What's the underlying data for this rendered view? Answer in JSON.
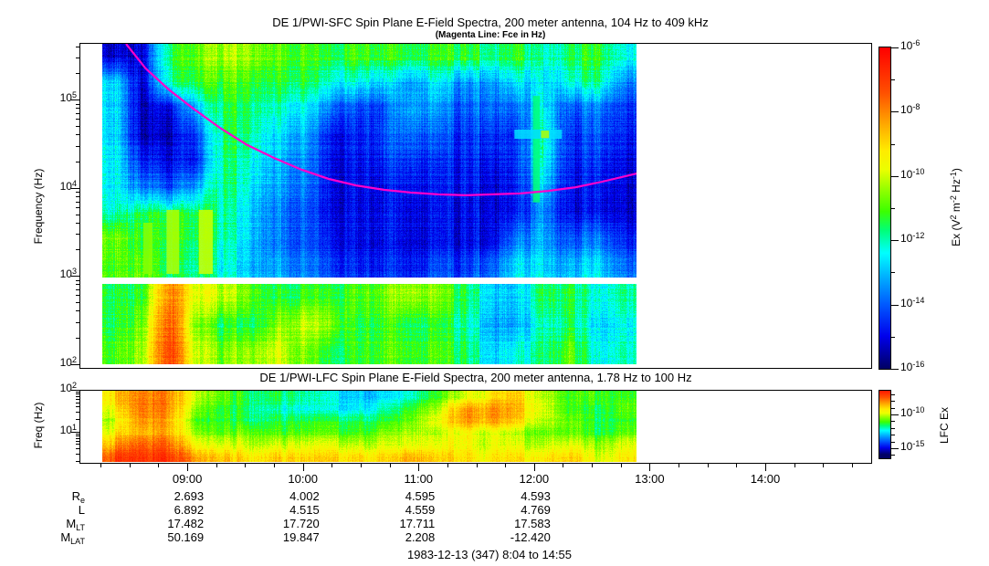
{
  "sfc": {
    "title": "DE 1/PWI-SFC  Spin Plane E-Field Spectra, 200 meter antenna, 104 Hz to 409 kHz",
    "subtitle": "(Magenta Line: Fce in Hz)",
    "y_axis_label": "Frequency (Hz)",
    "y_ticks": [
      {
        "label": "10",
        "exp": "5",
        "value": 100000
      },
      {
        "label": "10",
        "exp": "4",
        "value": 10000
      },
      {
        "label": "10",
        "exp": "3",
        "value": 1000
      },
      {
        "label": "10",
        "exp": "2",
        "value": 100
      }
    ],
    "colorbar": {
      "label_parts": [
        [
          "Ex (V",
          ""
        ],
        [
          "2",
          "sup"
        ],
        [
          " m",
          ""
        ],
        [
          "-2",
          "sup"
        ],
        [
          " Hz",
          ""
        ],
        [
          "-1",
          "sup"
        ],
        [
          ")",
          ""
        ]
      ],
      "ticks": [
        {
          "label": "10",
          "exp": "-6",
          "value": -6
        },
        {
          "label": "10",
          "exp": "-8",
          "value": -8
        },
        {
          "label": "10",
          "exp": "-10",
          "value": -10
        },
        {
          "label": "10",
          "exp": "-12",
          "value": -12
        },
        {
          "label": "10",
          "exp": "-14",
          "value": -14
        },
        {
          "label": "10",
          "exp": "-16",
          "value": -16
        }
      ]
    }
  },
  "lfc": {
    "title": "DE 1/PWI-LFC  Spin Plane E-Field Spectra, 200 meter antenna, 1.78 Hz to 100 Hz",
    "y_axis_label": "Freq (Hz)",
    "y_ticks": [
      {
        "label": "10",
        "exp": "2",
        "value": 100
      },
      {
        "label": "10",
        "exp": "1",
        "value": 10
      }
    ],
    "colorbar": {
      "label": "LFC Ex",
      "ticks": [
        {
          "label": "10",
          "exp": "-10",
          "value": -10
        },
        {
          "label": "10",
          "exp": "-15",
          "value": -15
        }
      ]
    }
  },
  "time_axis": {
    "start_label": "8:04",
    "end_label": "14:55",
    "tick_labels": [
      {
        "text": "09:00",
        "hour": 9
      },
      {
        "text": "10:00",
        "hour": 10
      },
      {
        "text": "11:00",
        "hour": 11
      },
      {
        "text": "12:00",
        "hour": 12
      },
      {
        "text": "13:00",
        "hour": 13
      },
      {
        "text": "14:00",
        "hour": 14
      }
    ]
  },
  "footer": {
    "rows": [
      {
        "label_parts": [
          [
            "R",
            ""
          ],
          [
            "e",
            "sub"
          ]
        ],
        "values": [
          "2.693",
          "4.002",
          "4.595",
          "4.593"
        ]
      },
      {
        "label_parts": [
          [
            "L",
            ""
          ]
        ],
        "values": [
          "6.892",
          "4.515",
          "4.559",
          "4.769"
        ]
      },
      {
        "label_parts": [
          [
            "M",
            ""
          ],
          [
            "LT",
            "sub"
          ]
        ],
        "values": [
          "17.482",
          "17.720",
          "17.711",
          "17.583"
        ]
      },
      {
        "label_parts": [
          [
            "M",
            ""
          ],
          [
            "LAT",
            "sub"
          ]
        ],
        "values": [
          "50.169",
          "19.847",
          "2.208",
          "-12.420"
        ]
      }
    ],
    "value_anchor_hours": [
      9,
      10,
      11,
      12
    ],
    "date_line": "1983-12-13 (347) 8:04 to 14:55"
  },
  "chart_data": {
    "type": "heatmap",
    "title": "DE 1/PWI-SFC and DE 1/PWI-LFC spin plane E-field spectrograms",
    "time_axis_hours": {
      "start": 8.0667,
      "end": 14.9167,
      "data_start": 8.27,
      "data_end": 12.886
    },
    "panels": [
      {
        "id": "sfc",
        "freq_range_hz": [
          104,
          409000
        ],
        "value_range_log10": [
          -16,
          -6
        ],
        "white_gap_freq_hz": [
          950,
          1200
        ],
        "grid_note": "rows log-spaced top 409 kHz to bottom 104 Hz; cols linear 8:16 to 12:53 UT; values log10(V2 m-2 Hz-1)",
        "grid_log10": [
          [
            -15.3,
            -15,
            -11.5,
            -10.8,
            -10.2,
            -10.2,
            -10.8,
            -11.2,
            -11.3,
            -11,
            -11.2,
            -11.3,
            -11.2,
            -11.4,
            -11.6,
            -11.3,
            -12.2,
            -11.6,
            -11.4,
            -12.3
          ],
          [
            -12.8,
            -15.2,
            -12,
            -11.3,
            -11,
            -11,
            -11.4,
            -11.6,
            -12.2,
            -12.4,
            -12.8,
            -13.2,
            -12.6,
            -13.6,
            -13.2,
            -12.8,
            -12.8,
            -12.4,
            -12,
            -13.6
          ],
          [
            -12.8,
            -15.3,
            -15,
            -13,
            -11.4,
            -11.4,
            -12,
            -12.6,
            -13.6,
            -14.2,
            -14.2,
            -13,
            -13.4,
            -14.2,
            -13.6,
            -14,
            -12.4,
            -14.2,
            -13.8,
            -14.4
          ],
          [
            -12.8,
            -15.3,
            -15.3,
            -14.2,
            -11.5,
            -11.5,
            -12.6,
            -13.2,
            -14.6,
            -14.6,
            -14.2,
            -13.6,
            -14,
            -14.6,
            -14.2,
            -14.6,
            -12,
            -14.6,
            -14.2,
            -14.6
          ],
          [
            -12.6,
            -14.6,
            -15,
            -14.6,
            -11.6,
            -12,
            -13,
            -13.6,
            -14.8,
            -14.8,
            -14.6,
            -14.2,
            -14.6,
            -14.8,
            -14.6,
            -14.6,
            -12.2,
            -14.8,
            -14.6,
            -15
          ],
          [
            -12.6,
            -13.6,
            -14.2,
            -13.2,
            -11.6,
            -12.2,
            -13.2,
            -13.8,
            -14.8,
            -14.9,
            -14.9,
            -14.6,
            -14.8,
            -14.9,
            -14.9,
            -14.8,
            -12.8,
            -15,
            -14.9,
            -15.1
          ],
          [
            -12.2,
            -11.4,
            -11.6,
            -11.4,
            -11.8,
            -12.6,
            -13.6,
            -14.2,
            -14.9,
            -14.9,
            -14.9,
            -14.9,
            -14.9,
            -15.1,
            -14.9,
            -14.9,
            -13.6,
            -15.1,
            -15,
            -15.2
          ],
          [
            -10.8,
            -11.2,
            -11.4,
            -11.4,
            -11.8,
            -12.6,
            -13.6,
            -14.2,
            -14.6,
            -14.9,
            -14.9,
            -14.9,
            -14.9,
            -15.1,
            -14.9,
            -13.8,
            -13.2,
            -14.2,
            -13.8,
            -14.6
          ],
          [
            -11.2,
            -10.8,
            -11.8,
            -11.8,
            -12.2,
            -12.8,
            -13.2,
            -13.8,
            -14.2,
            -14.6,
            -14.6,
            -14.6,
            -14.2,
            -14.6,
            -13.8,
            -12.8,
            -12.8,
            -13.2,
            -12.8,
            -13.8
          ],
          [
            -11.6,
            -11.2,
            -7.8,
            -9.8,
            -10,
            -10.6,
            -11.4,
            -11.4,
            -11.2,
            -11,
            -10.8,
            -10.2,
            -10.6,
            -11.6,
            -12.6,
            -13,
            -11.6,
            -11.4,
            -12.6,
            -11.8
          ],
          [
            -11.6,
            -10.6,
            -7.2,
            -10.6,
            -11.4,
            -11.4,
            -10.6,
            -10.2,
            -10.4,
            -11.4,
            -11.2,
            -11.4,
            -11.4,
            -12,
            -13,
            -13.4,
            -12.2,
            -11.6,
            -13,
            -12.4
          ],
          [
            -11.2,
            -10.2,
            -6.9,
            -10,
            -10.6,
            -10.2,
            -9.8,
            -10.8,
            -11.4,
            -11.2,
            -11,
            -11,
            -11,
            -11.6,
            -12.6,
            -12.4,
            -11.8,
            -10.8,
            -12.6,
            -12
          ]
        ]
      },
      {
        "id": "lfc",
        "freq_range_hz": [
          1.78,
          100
        ],
        "value_range_log10": [
          -16.5,
          -6.5
        ],
        "grid_note": "rows log-spaced top 100 Hz to bottom 1.78 Hz; cols linear 8:16 to 12:53 UT",
        "grid_log10": [
          [
            -9,
            -7.8,
            -8,
            -10,
            -11,
            -11.5,
            -11.5,
            -12,
            -12.5,
            -12.8,
            -12.8,
            -12.4,
            -11,
            -10,
            -9.4,
            -9,
            -10.4,
            -11.4,
            -11,
            -11.4
          ],
          [
            -9.4,
            -7.6,
            -8,
            -10.4,
            -11.4,
            -11.5,
            -12,
            -12.4,
            -12.5,
            -12.4,
            -12,
            -11.4,
            -10,
            -8.2,
            -8.2,
            -8.6,
            -10,
            -11.4,
            -11.4,
            -11
          ],
          [
            -10,
            -8,
            -8.4,
            -11,
            -11.4,
            -11.5,
            -11.5,
            -11.5,
            -11.5,
            -11.4,
            -11.4,
            -11,
            -9.5,
            -8.2,
            -8.4,
            -9,
            -10.4,
            -11,
            -11.4,
            -11.4
          ],
          [
            -9.4,
            -8.4,
            -8.4,
            -10.4,
            -11,
            -10.6,
            -11,
            -11,
            -11,
            -11,
            -10.6,
            -10.4,
            -10,
            -9.5,
            -10,
            -10.4,
            -11,
            -11,
            -11.4,
            -11
          ],
          [
            -8.4,
            -7.4,
            -7.6,
            -9.5,
            -10,
            -10,
            -10,
            -10,
            -10,
            -10,
            -10,
            -10,
            -9.5,
            -9.5,
            -10,
            -10,
            -10.4,
            -10,
            -10.4,
            -10
          ],
          [
            -7.2,
            -6.8,
            -6.8,
            -8.2,
            -8.8,
            -9,
            -8.8,
            -9,
            -9,
            -8.8,
            -9,
            -8.6,
            -8.6,
            -9,
            -9.4,
            -9.2,
            -9.4,
            -9,
            -9.8,
            -9.4
          ]
        ]
      }
    ],
    "fce_line": {
      "color": "#ff00cc",
      "points_hour_hz": [
        [
          8.47,
          430000
        ],
        [
          8.64,
          225000
        ],
        [
          8.84,
          130000
        ],
        [
          9.04,
          81000
        ],
        [
          9.28,
          48000
        ],
        [
          9.51,
          31000
        ],
        [
          9.75,
          21800
        ],
        [
          9.99,
          16000
        ],
        [
          10.22,
          12600
        ],
        [
          10.46,
          10600
        ],
        [
          10.7,
          9450
        ],
        [
          10.93,
          8800
        ],
        [
          11.17,
          8400
        ],
        [
          11.41,
          8200
        ],
        [
          11.64,
          8400
        ],
        [
          11.88,
          8600
        ],
        [
          12.12,
          9200
        ],
        [
          12.36,
          10100
        ],
        [
          12.59,
          11700
        ],
        [
          12.89,
          14500
        ]
      ]
    },
    "features_rects": [
      {
        "t0": 11.99,
        "t1": 12.05,
        "f0": 6800,
        "f1": 110000,
        "v": -11.7
      },
      {
        "t0": 11.83,
        "t1": 12.24,
        "f0": 35900,
        "f1": 45700,
        "v": -12.7
      },
      {
        "t0": 12.06,
        "t1": 12.13,
        "f0": 36500,
        "f1": 44500,
        "v": -10.2
      },
      {
        "t0": 8.82,
        "t1": 8.93,
        "f0": 1050,
        "f1": 5600,
        "v": -10.2
      },
      {
        "t0": 9.1,
        "t1": 9.22,
        "f0": 1050,
        "f1": 5600,
        "v": -10.0
      },
      {
        "t0": 8.62,
        "t1": 8.7,
        "f0": 1050,
        "f1": 4000,
        "v": -10.5
      }
    ],
    "colormap_stops": [
      [
        0,
        0,
        0,
        100
      ],
      [
        0.1,
        0,
        0,
        235
      ],
      [
        0.2,
        0,
        90,
        255
      ],
      [
        0.29,
        0,
        180,
        255
      ],
      [
        0.36,
        0,
        255,
        255
      ],
      [
        0.43,
        0,
        255,
        120
      ],
      [
        0.49,
        60,
        255,
        0
      ],
      [
        0.56,
        150,
        255,
        0
      ],
      [
        0.62,
        235,
        255,
        0
      ],
      [
        0.68,
        255,
        235,
        0
      ],
      [
        0.76,
        255,
        170,
        0
      ],
      [
        0.86,
        255,
        80,
        0
      ],
      [
        1,
        255,
        0,
        0
      ]
    ]
  }
}
